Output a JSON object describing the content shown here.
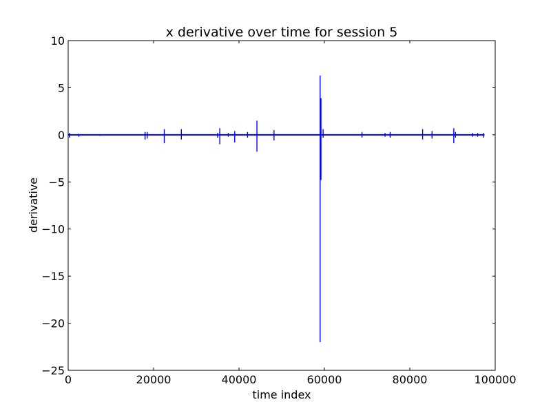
{
  "chart_data": {
    "type": "line",
    "title": "x derivative over time for session 5",
    "xlabel": "time index",
    "ylabel": "derivative",
    "xlim": [
      0,
      100000
    ],
    "ylim": [
      -25,
      10
    ],
    "x_ticks": [
      0,
      20000,
      40000,
      60000,
      80000,
      100000
    ],
    "x_tick_labels": [
      "0",
      "20000",
      "40000",
      "60000",
      "80000",
      "100000"
    ],
    "y_ticks": [
      10,
      5,
      0,
      -5,
      -10,
      -15,
      -20,
      -25
    ],
    "y_tick_labels": [
      "10",
      "5",
      "0",
      "−5",
      "−10",
      "−15",
      "−20",
      "−25"
    ],
    "grid": false,
    "legend": "none",
    "series_color": "#0000ff",
    "series": [
      {
        "x_range": [
          0,
          97500
        ],
        "baseline": 0,
        "spikes": [
          {
            "x": 300,
            "max": 0.2,
            "min": -0.3
          },
          {
            "x": 2500,
            "max": 0.1,
            "min": -0.2
          },
          {
            "x": 7500,
            "max": 0.05,
            "min": -0.1
          },
          {
            "x": 18000,
            "max": 0.3,
            "min": -0.5
          },
          {
            "x": 18500,
            "max": 0.3,
            "min": -0.4
          },
          {
            "x": 22500,
            "max": 0.6,
            "min": -0.9
          },
          {
            "x": 26500,
            "max": 0.6,
            "min": -0.5
          },
          {
            "x": 35000,
            "max": 0.2,
            "min": -0.3
          },
          {
            "x": 35500,
            "max": 0.7,
            "min": -1.0
          },
          {
            "x": 37500,
            "max": 0.2,
            "min": -0.2
          },
          {
            "x": 39000,
            "max": 0.4,
            "min": -0.8
          },
          {
            "x": 42000,
            "max": 0.3,
            "min": -0.3
          },
          {
            "x": 44200,
            "max": 1.5,
            "min": -1.8
          },
          {
            "x": 48200,
            "max": 0.5,
            "min": -0.6
          },
          {
            "x": 59000,
            "max": 6.3,
            "min": -22.0
          },
          {
            "x": 59200,
            "max": 3.9,
            "min": -4.8
          },
          {
            "x": 59700,
            "max": 0.6,
            "min": -0.3
          },
          {
            "x": 68800,
            "max": 0.3,
            "min": -0.3
          },
          {
            "x": 74200,
            "max": 0.2,
            "min": -0.2
          },
          {
            "x": 75400,
            "max": 0.3,
            "min": -0.3
          },
          {
            "x": 83000,
            "max": 0.6,
            "min": -0.5
          },
          {
            "x": 85200,
            "max": 0.4,
            "min": -0.4
          },
          {
            "x": 90300,
            "max": 0.7,
            "min": -0.9
          },
          {
            "x": 90700,
            "max": 0.3,
            "min": -0.3
          },
          {
            "x": 94700,
            "max": 0.2,
            "min": -0.2
          },
          {
            "x": 95900,
            "max": 0.2,
            "min": -0.2
          },
          {
            "x": 97200,
            "max": 0.2,
            "min": -0.3
          }
        ]
      }
    ]
  }
}
